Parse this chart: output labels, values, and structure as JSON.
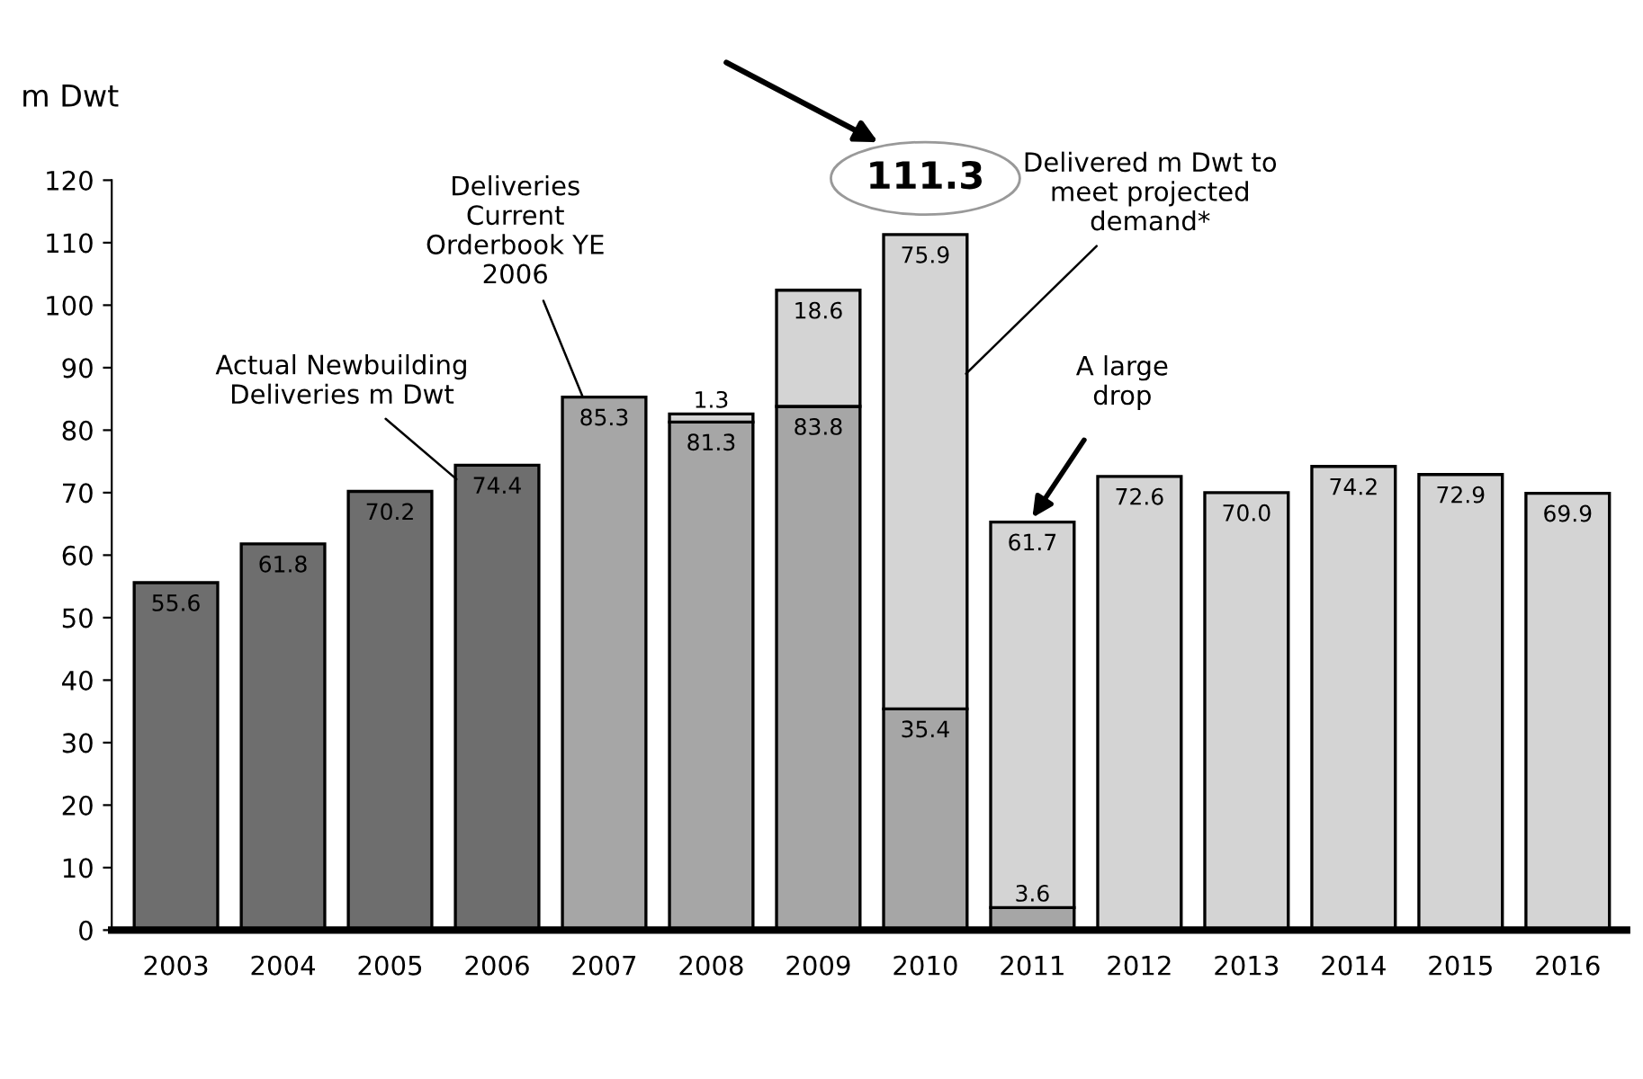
{
  "chart_data": {
    "type": "bar",
    "stacked": true,
    "ylabel": "m Dwt",
    "categories": [
      "2003",
      "2004",
      "2005",
      "2006",
      "2007",
      "2008",
      "2009",
      "2010",
      "2011",
      "2012",
      "2013",
      "2014",
      "2015",
      "2016"
    ],
    "series": [
      {
        "name": "Actual Newbuilding Deliveries m Dwt",
        "color": "#6e6e6e",
        "values": [
          55.6,
          61.8,
          70.2,
          74.4,
          null,
          null,
          null,
          null,
          null,
          null,
          null,
          null,
          null,
          null
        ],
        "value_labels": [
          "55.6",
          "61.8",
          "70.2",
          "74.4",
          null,
          null,
          null,
          null,
          null,
          null,
          null,
          null,
          null,
          null
        ]
      },
      {
        "name": "Deliveries Current Orderbook YE 2006",
        "color": "#a6a6a6",
        "values": [
          null,
          null,
          null,
          null,
          85.3,
          81.3,
          83.8,
          35.4,
          3.6,
          null,
          null,
          null,
          null,
          null
        ],
        "value_labels": [
          null,
          null,
          null,
          null,
          "85.3",
          "81.3",
          "83.8",
          "35.4",
          "3.6",
          null,
          null,
          null,
          null,
          null
        ]
      },
      {
        "name": "Delivered m Dwt to meet projected demand*",
        "color": "#d4d4d4",
        "values": [
          null,
          null,
          null,
          null,
          null,
          1.3,
          18.6,
          75.9,
          61.7,
          72.6,
          70.0,
          74.2,
          72.9,
          69.9
        ],
        "value_labels": [
          null,
          null,
          null,
          null,
          null,
          "1.3",
          "18.6",
          "75.9",
          "61.7",
          "72.6",
          "70.0",
          "74.2",
          "72.9",
          "69.9"
        ]
      }
    ],
    "totals": [
      null,
      null,
      null,
      null,
      null,
      null,
      null,
      "111.3",
      null,
      null,
      null,
      null,
      null,
      null
    ],
    "ylim": [
      0,
      120
    ],
    "yticks": [
      0,
      10,
      20,
      30,
      40,
      50,
      60,
      70,
      80,
      90,
      100,
      110,
      120
    ],
    "annotations": [
      {
        "text": "A large drop",
        "x": "2011",
        "y": 66
      }
    ],
    "grid": false,
    "legend": false
  }
}
